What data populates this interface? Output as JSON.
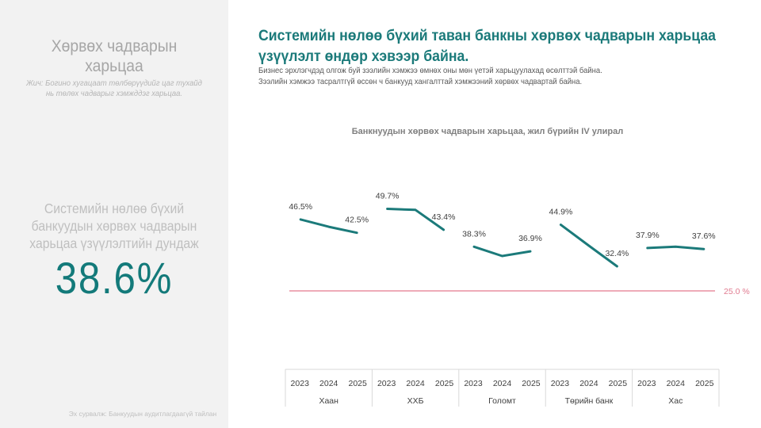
{
  "left_panel": {
    "title_line1": "Хөрвөх чадварын",
    "title_line2": "харьцаа",
    "note_line1": "Жич: Богино хугацаат төлбөрүүдийг цаг тухайд",
    "note_line2": "нь төлөх чадварыг хэмжддэг харьцаа.",
    "kpi_label_line1": "Системийн нөлөө бүхий",
    "kpi_label_line2": "банкуудын хөрвөх чадварын",
    "kpi_label_line3": "харьцаа үзүүлэлтийн дундаж",
    "kpi_value": "38.6%",
    "source": "Эх сурвалж: Банкуудын аудитлагдаагүй тайлан"
  },
  "header": {
    "headline_line1": "Системийн нөлөө бүхий таван банкны хөрвөх чадварын харьцаа",
    "headline_line2": "үзүүлэлт өндөр хэвээр байна.",
    "sub_line1": "Бизнес эрхлэгчдэд олгож буй зээлийн хэмжээ өмнөх оны мөн үетэй харьцуулахад өсөлттэй байна.",
    "sub_line2": "Зээлийн хэмжээ тасралтгүй өссөн ч банкууд хангалттай хэмжээний хөрвөх чадвартай байна."
  },
  "colors": {
    "accent": "#137a7a",
    "line": "#1b7a7a",
    "reference": "#e88fa0",
    "panel_bg": "#f2f2f2"
  },
  "chart_data": {
    "type": "line",
    "title": "Банкнуудын хөрвөх чадварын харьцаа, жил бүрийн IV улирал",
    "xlabel": "",
    "ylabel": "",
    "ylim": [
      0,
      55
    ],
    "grid": false,
    "years": [
      "2023",
      "2024",
      "2025"
    ],
    "groups": [
      {
        "name": "Хаан",
        "values": [
          46.5,
          44.3,
          42.5
        ],
        "labels": [
          "46.5%",
          "",
          "42.5%"
        ]
      },
      {
        "name": "ХХБ",
        "values": [
          49.7,
          49.4,
          43.4
        ],
        "labels": [
          "49.7%",
          "",
          "43.4%"
        ]
      },
      {
        "name": "Голомт",
        "values": [
          38.3,
          35.5,
          36.9
        ],
        "labels": [
          "38.3%",
          "",
          "36.9%"
        ]
      },
      {
        "name": "Төрийн банк",
        "values": [
          44.9,
          38.6,
          32.4
        ],
        "labels": [
          "44.9%",
          "",
          "32.4%"
        ]
      },
      {
        "name": "Хас",
        "values": [
          37.9,
          38.3,
          37.6
        ],
        "labels": [
          "37.9%",
          "",
          "37.6%"
        ]
      }
    ],
    "reference_line": {
      "value": 25.0,
      "label": "25.0 %"
    }
  }
}
